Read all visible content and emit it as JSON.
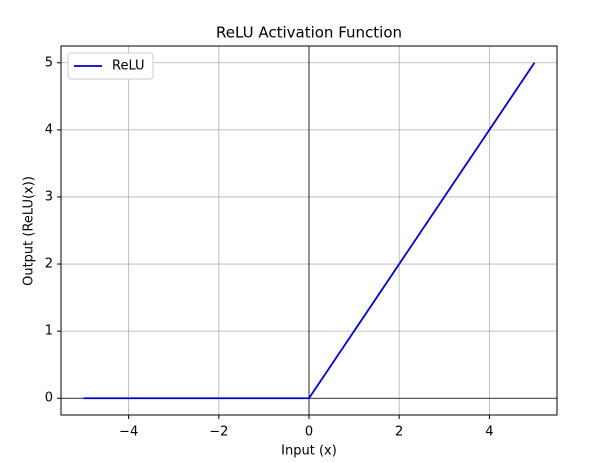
{
  "chart_data": {
    "type": "line",
    "title": "ReLU Activation Function",
    "x_label": "Input (x)",
    "y_label": "Output (ReLU(x))",
    "x": [
      -5,
      0,
      5
    ],
    "series": [
      {
        "name": "ReLU",
        "color": "#0000cd",
        "values": [
          0,
          0,
          5
        ]
      }
    ],
    "xlim": [
      -5.5,
      5.5
    ],
    "ylim": [
      -0.25,
      5.25
    ],
    "xticks": [
      {
        "value": -4,
        "label": "−4"
      },
      {
        "value": -2,
        "label": "−2"
      },
      0,
      2,
      4
    ],
    "yticks": [
      0,
      1,
      2,
      3,
      4,
      5
    ],
    "grid": true,
    "zero_lines": true,
    "legend": "upper left"
  }
}
